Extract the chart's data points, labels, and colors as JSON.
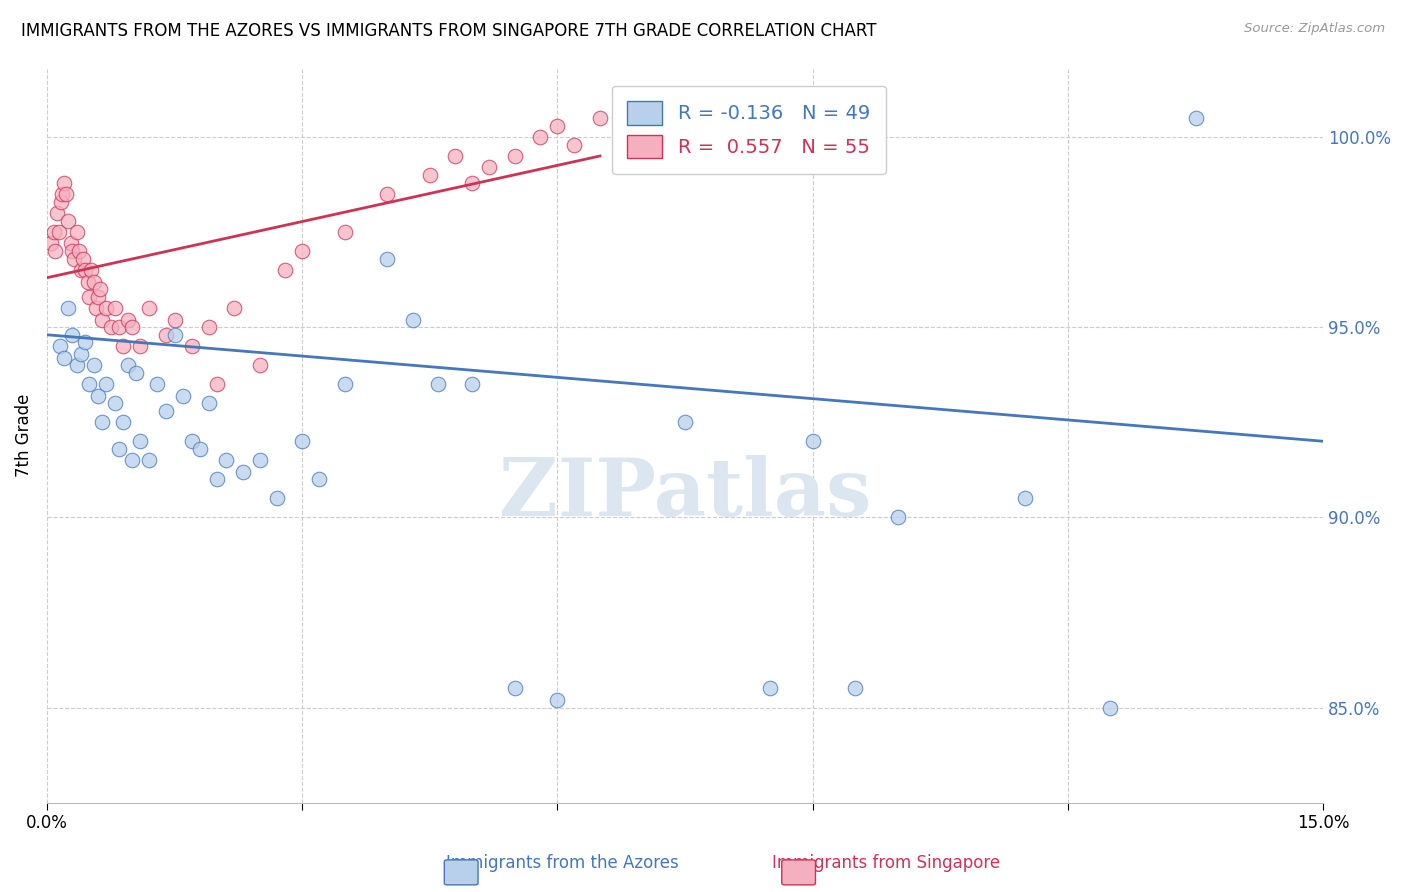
{
  "title": "IMMIGRANTS FROM THE AZORES VS IMMIGRANTS FROM SINGAPORE 7TH GRADE CORRELATION CHART",
  "source": "Source: ZipAtlas.com",
  "ylabel": "7th Grade",
  "xlim": [
    0.0,
    15.0
  ],
  "ylim": [
    82.5,
    101.8
  ],
  "yticks": [
    85.0,
    90.0,
    95.0,
    100.0
  ],
  "ytick_labels": [
    "85.0%",
    "90.0%",
    "95.0%",
    "100.0%"
  ],
  "xticks": [
    0.0,
    3.0,
    6.0,
    9.0,
    12.0,
    15.0
  ],
  "xtick_labels": [
    "0.0%",
    "",
    "",
    "",
    "",
    "15.0%"
  ],
  "blue_R": -0.136,
  "blue_N": 49,
  "pink_R": 0.557,
  "pink_N": 55,
  "blue_color": "#b8d0eb",
  "blue_line_color": "#4477bb",
  "pink_color": "#f5b0c0",
  "pink_line_color": "#cc3355",
  "watermark": "ZIPatlas",
  "watermark_color": "#dce6f0",
  "blue_x": [
    0.15,
    0.2,
    0.25,
    0.3,
    0.35,
    0.4,
    0.45,
    0.5,
    0.55,
    0.6,
    0.65,
    0.7,
    0.8,
    0.85,
    0.9,
    0.95,
    1.0,
    1.05,
    1.1,
    1.2,
    1.3,
    1.4,
    1.5,
    1.6,
    1.7,
    1.8,
    1.9,
    2.0,
    2.1,
    2.3,
    2.5,
    2.7,
    3.0,
    3.2,
    3.5,
    4.0,
    4.3,
    4.6,
    5.0,
    5.5,
    6.0,
    7.5,
    8.5,
    9.0,
    9.5,
    10.0,
    11.5,
    12.5,
    13.5
  ],
  "blue_y": [
    94.5,
    94.2,
    95.5,
    94.8,
    94.0,
    94.3,
    94.6,
    93.5,
    94.0,
    93.2,
    92.5,
    93.5,
    93.0,
    91.8,
    92.5,
    94.0,
    91.5,
    93.8,
    92.0,
    91.5,
    93.5,
    92.8,
    94.8,
    93.2,
    92.0,
    91.8,
    93.0,
    91.0,
    91.5,
    91.2,
    91.5,
    90.5,
    92.0,
    91.0,
    93.5,
    96.8,
    95.2,
    93.5,
    93.5,
    85.5,
    85.2,
    92.5,
    85.5,
    92.0,
    85.5,
    90.0,
    90.5,
    85.0,
    100.5
  ],
  "pink_x": [
    0.05,
    0.08,
    0.1,
    0.12,
    0.14,
    0.16,
    0.18,
    0.2,
    0.22,
    0.25,
    0.28,
    0.3,
    0.32,
    0.35,
    0.38,
    0.4,
    0.42,
    0.45,
    0.48,
    0.5,
    0.52,
    0.55,
    0.58,
    0.6,
    0.62,
    0.65,
    0.7,
    0.75,
    0.8,
    0.85,
    0.9,
    0.95,
    1.0,
    1.1,
    1.2,
    1.4,
    1.5,
    1.7,
    1.9,
    2.0,
    2.2,
    2.5,
    2.8,
    3.0,
    3.5,
    4.0,
    4.5,
    4.8,
    5.0,
    5.2,
    5.5,
    5.8,
    6.0,
    6.2,
    6.5
  ],
  "pink_y": [
    97.2,
    97.5,
    97.0,
    98.0,
    97.5,
    98.3,
    98.5,
    98.8,
    98.5,
    97.8,
    97.2,
    97.0,
    96.8,
    97.5,
    97.0,
    96.5,
    96.8,
    96.5,
    96.2,
    95.8,
    96.5,
    96.2,
    95.5,
    95.8,
    96.0,
    95.2,
    95.5,
    95.0,
    95.5,
    95.0,
    94.5,
    95.2,
    95.0,
    94.5,
    95.5,
    94.8,
    95.2,
    94.5,
    95.0,
    93.5,
    95.5,
    94.0,
    96.5,
    97.0,
    97.5,
    98.5,
    99.0,
    99.5,
    98.8,
    99.2,
    99.5,
    100.0,
    100.3,
    99.8,
    100.5
  ],
  "blue_trendline_x": [
    0.0,
    15.0
  ],
  "blue_trendline_y": [
    94.8,
    92.0
  ],
  "pink_trendline_x": [
    0.0,
    6.5
  ],
  "pink_trendline_y": [
    96.3,
    99.5
  ]
}
